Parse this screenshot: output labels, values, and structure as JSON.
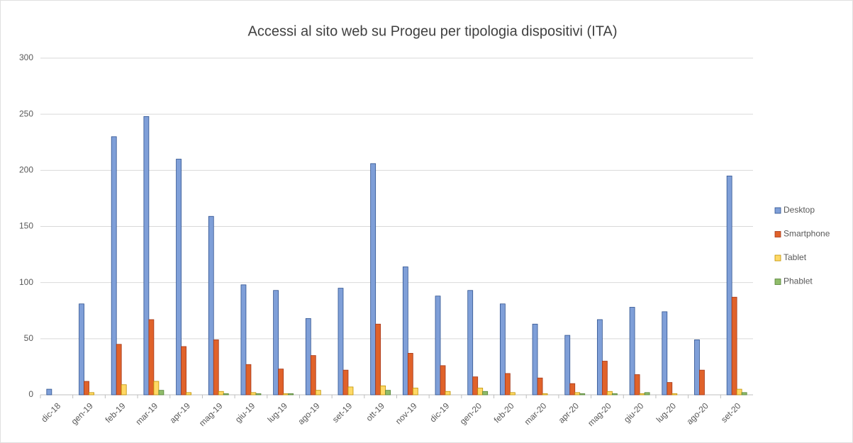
{
  "chart_data": {
    "type": "bar",
    "title": "Accessi al sito web su Progeu per tipologia dispositivi (ITA)",
    "categories": [
      "dic-18",
      "gen-19",
      "feb-19",
      "mar-19",
      "apr-19",
      "mag-19",
      "giu-19",
      "lug-19",
      "ago-19",
      "set-19",
      "ott-19",
      "nov-19",
      "dic-19",
      "gen-20",
      "feb-20",
      "mar-20",
      "apr-20",
      "mag-20",
      "giu-20",
      "lug-20",
      "ago-20",
      "set-20"
    ],
    "series": [
      {
        "name": "Desktop",
        "color": "#7f9fd8",
        "values": [
          5,
          81,
          230,
          248,
          210,
          159,
          98,
          93,
          68,
          95,
          206,
          114,
          88,
          93,
          81,
          63,
          53,
          67,
          78,
          74,
          49,
          195
        ]
      },
      {
        "name": "Smartphone",
        "color": "#e0622a",
        "values": [
          0,
          12,
          45,
          67,
          43,
          49,
          27,
          23,
          35,
          22,
          63,
          37,
          26,
          16,
          19,
          15,
          10,
          30,
          18,
          11,
          22,
          87
        ]
      },
      {
        "name": "Tablet",
        "color": "#ffd966",
        "values": [
          0,
          2,
          9,
          12,
          2,
          3,
          2,
          1,
          4,
          7,
          8,
          6,
          3,
          6,
          2,
          1,
          2,
          3,
          1,
          1,
          0,
          5
        ]
      },
      {
        "name": "Phablet",
        "color": "#8fbc6a",
        "values": [
          0,
          0,
          0,
          4,
          0,
          1,
          1,
          1,
          0,
          0,
          4,
          0,
          0,
          3,
          0,
          0,
          1,
          1,
          2,
          0,
          0,
          2
        ]
      }
    ],
    "ylim": [
      0,
      300
    ],
    "yticks": [
      0,
      50,
      100,
      150,
      200,
      250,
      300
    ],
    "grid": true,
    "legend": "right"
  }
}
